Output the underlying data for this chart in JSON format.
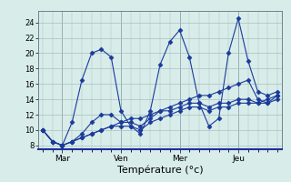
{
  "background_color": "#d8ecea",
  "plot_bg_color": "#d8ecea",
  "line_color": "#1a3a9a",
  "marker": "D",
  "marker_size": 2.5,
  "xlabel": "Température (°c)",
  "xlabel_fontsize": 8,
  "yticks": [
    8,
    10,
    12,
    14,
    16,
    18,
    20,
    22,
    24
  ],
  "ylim": [
    7.5,
    25.5
  ],
  "grid_color": "#a8c0be",
  "xtick_labels": [
    "Mar",
    "Ven",
    "Mer",
    "Jeu"
  ],
  "xtick_positions": [
    2,
    8,
    14,
    20
  ],
  "n_points": 25,
  "series": [
    [
      10.0,
      8.5,
      8.0,
      11.0,
      16.5,
      20.0,
      20.5,
      19.5,
      12.5,
      10.5,
      9.5,
      12.5,
      18.5,
      21.5,
      23.0,
      19.5,
      13.5,
      10.5,
      11.5,
      20.0,
      24.5,
      19.0,
      15.0,
      14.5,
      15.0
    ],
    [
      10.0,
      8.5,
      8.0,
      8.5,
      9.5,
      11.0,
      12.0,
      12.0,
      11.0,
      11.0,
      10.5,
      11.5,
      12.5,
      12.5,
      13.0,
      13.5,
      13.5,
      13.0,
      13.5,
      13.5,
      14.0,
      14.0,
      13.5,
      14.0,
      14.5
    ],
    [
      10.0,
      8.5,
      8.0,
      8.5,
      9.0,
      9.5,
      10.0,
      10.5,
      10.5,
      10.5,
      10.0,
      11.0,
      11.5,
      12.0,
      12.5,
      13.0,
      13.0,
      12.5,
      13.0,
      13.0,
      13.5,
      13.5,
      13.5,
      13.5,
      14.0
    ],
    [
      10.0,
      8.5,
      8.0,
      8.5,
      9.0,
      9.5,
      10.0,
      10.5,
      11.0,
      11.5,
      11.5,
      12.0,
      12.5,
      13.0,
      13.5,
      14.0,
      14.5,
      14.5,
      15.0,
      15.5,
      16.0,
      16.5,
      14.0,
      13.5,
      14.5
    ]
  ]
}
